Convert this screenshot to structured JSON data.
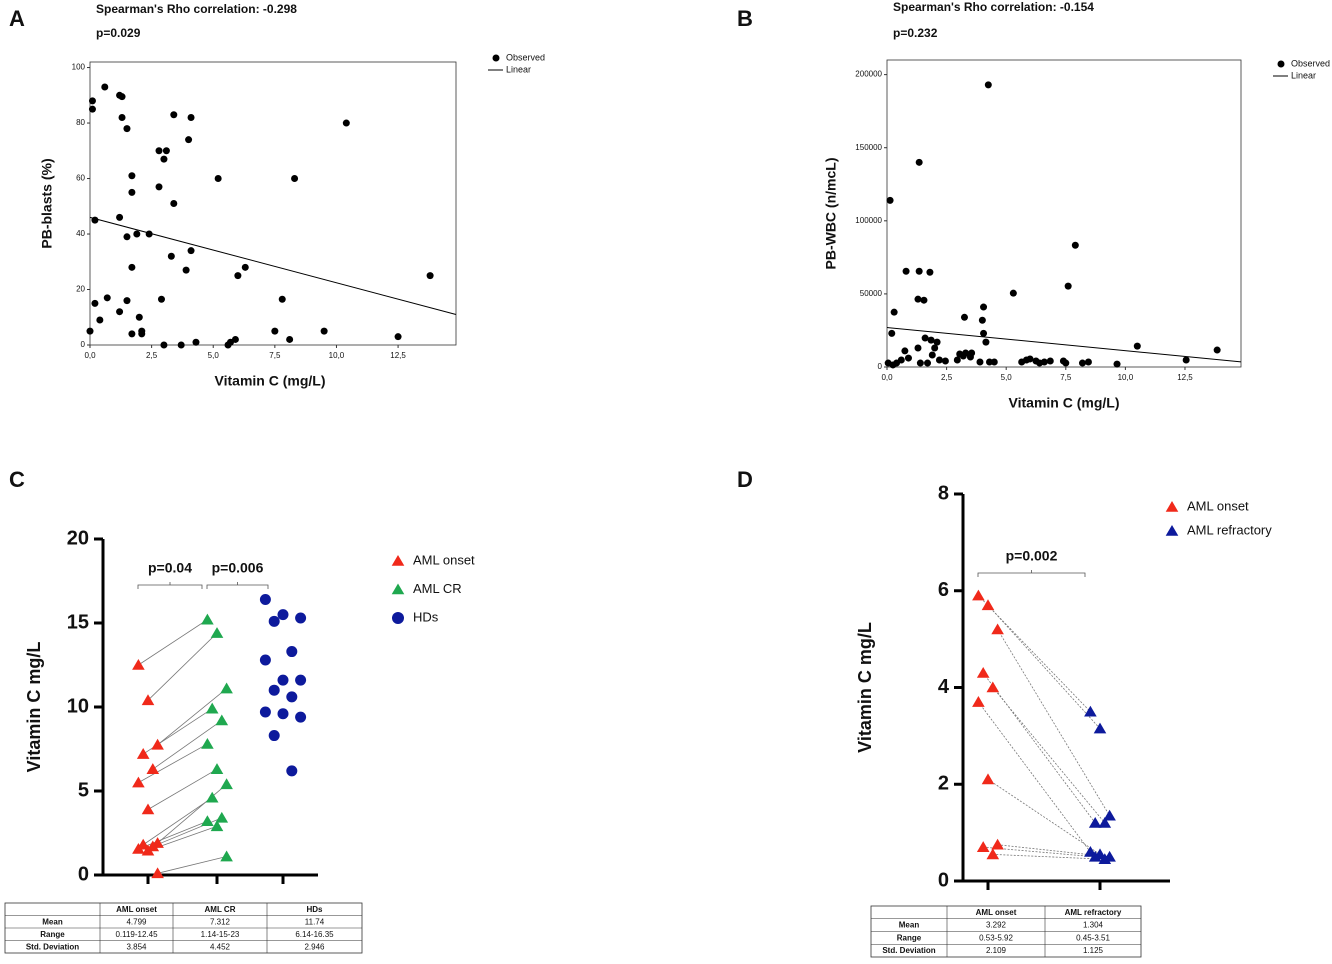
{
  "chart_data": [
    {
      "type": "scatter",
      "panel": "A",
      "title": "Spearman's Rho correlation: -0.298",
      "subtitle": "p=0.029",
      "x_label": "Vitamin C (mg/L)",
      "y_label": "PB-blasts (%)",
      "xlim": [
        0,
        14.85
      ],
      "ylim": [
        0,
        102
      ],
      "xticks": [
        {
          "value": 0,
          "label": "0,0"
        },
        {
          "value": 2.5,
          "label": "2,5"
        },
        {
          "value": 5,
          "label": "5,0"
        },
        {
          "value": 7.5,
          "label": "7,5"
        },
        {
          "value": 10,
          "label": "10,0"
        },
        {
          "value": 12.5,
          "label": "12,5"
        }
      ],
      "yticks": [
        0,
        20,
        40,
        60,
        80,
        100
      ],
      "series": [
        {
          "name": "Observed",
          "mode": "markers",
          "color": "#000000",
          "x": [
            0,
            0.1,
            0.1,
            0.2,
            0.2,
            0.4,
            0.6,
            0.7,
            1.2,
            1.2,
            1.3,
            1.3,
            1.2,
            1.5,
            1.5,
            1.5,
            1.7,
            1.7,
            1.7,
            1.7,
            1.9,
            2.0,
            2.1,
            2.1,
            2.4,
            2.8,
            2.8,
            3.0,
            3.1,
            2.9,
            3.0,
            3.3,
            3.4,
            3.4,
            3.7,
            3.9,
            4.0,
            4.1,
            4.1,
            4.3,
            5.2,
            5.6,
            5.7,
            5.9,
            6.0,
            6.3,
            7.5,
            7.8,
            8.1,
            8.3,
            9.5,
            10.4,
            12.5,
            13.8
          ],
          "values": [
            5,
            88,
            85,
            45,
            15,
            9,
            93,
            17,
            12,
            90,
            89.5,
            82,
            46,
            78,
            39,
            16,
            61,
            55,
            28,
            4,
            40,
            10,
            5,
            4,
            40,
            57,
            70,
            67,
            70,
            16.5,
            0,
            32,
            51,
            83,
            0,
            27,
            74,
            34,
            82,
            1,
            60,
            0,
            1,
            2,
            25,
            28,
            5,
            16.5,
            2,
            60,
            5,
            80,
            3,
            25
          ]
        },
        {
          "name": "Linear",
          "mode": "lines",
          "color": "#000000",
          "x": [
            0,
            14.85
          ],
          "values": [
            46,
            11
          ]
        }
      ]
    },
    {
      "type": "scatter",
      "panel": "B",
      "title": "Spearman's Rho correlation: -0.154",
      "subtitle": "p=0.232",
      "x_label": "Vitamin C (mg/L)",
      "y_label": "PB-WBC (n/mcL)",
      "xlim": [
        0,
        14.85
      ],
      "ylim": [
        0,
        210000
      ],
      "xticks": [
        {
          "value": 0,
          "label": "0,0"
        },
        {
          "value": 2.5,
          "label": "2,5"
        },
        {
          "value": 5,
          "label": "5,0"
        },
        {
          "value": 7.5,
          "label": "7,5"
        },
        {
          "value": 10,
          "label": "10,0"
        },
        {
          "value": 12.5,
          "label": "12,5"
        }
      ],
      "yticks": [
        0,
        50000,
        100000,
        150000,
        200000
      ],
      "series": [
        {
          "name": "Observed",
          "mode": "markers",
          "color": "#000000",
          "x": [
            0.13,
            0.2,
            0.3,
            0.05,
            0.25,
            0.4,
            0.6,
            0.75,
            0.8,
            0.9,
            1.35,
            1.3,
            1.4,
            1.3,
            1.55,
            1.6,
            1.7,
            1.8,
            1.85,
            2.0,
            1.9,
            2.1,
            1.35,
            2.2,
            2.45,
            2.95,
            3.05,
            3.2,
            3.3,
            3.5,
            3.25,
            3.55,
            4.05,
            4.05,
            4.0,
            4.15,
            4.25,
            3.9,
            4.3,
            4.5,
            5.3,
            5.65,
            5.85,
            6.0,
            6.25,
            6.4,
            6.6,
            6.85,
            7.4,
            7.5,
            7.6,
            7.9,
            8.2,
            8.45,
            9.65,
            10.5,
            12.55,
            13.85
          ],
          "values": [
            114000,
            23000,
            37500,
            2700,
            1400,
            2700,
            4800,
            11000,
            65500,
            6100,
            65500,
            46400,
            2700,
            13000,
            45700,
            19800,
            2700,
            64800,
            18400,
            13000,
            8200,
            17000,
            140000,
            4800,
            4100,
            4800,
            8900,
            7500,
            9600,
            6800,
            34000,
            9600,
            23000,
            41000,
            32000,
            17000,
            193000,
            3400,
            3400,
            3400,
            50500,
            3400,
            4800,
            5500,
            4100,
            2700,
            3400,
            4100,
            4100,
            2700,
            55300,
            83300,
            2700,
            3400,
            2000,
            14300,
            4800,
            11600
          ]
        },
        {
          "name": "Linear",
          "mode": "lines",
          "color": "#000000",
          "x": [
            0,
            14.85
          ],
          "values": [
            27000,
            3500
          ]
        }
      ]
    },
    {
      "type": "dot",
      "panel": "C",
      "y_label": "Vitamin C mg/L",
      "ylim": [
        0,
        20
      ],
      "yticks": [
        0,
        5,
        10,
        15,
        20
      ],
      "annotations": [
        "p=0.04",
        "p=0.006"
      ],
      "series": [
        {
          "name": "AML onset",
          "marker": "triangle",
          "color": "#f0291a",
          "values": [
            12.5,
            10.4,
            7.75,
            7.2,
            6.3,
            5.5,
            3.9,
            1.9,
            1.8,
            1.7,
            1.55,
            1.45,
            0.1
          ]
        },
        {
          "name": "AML CR",
          "marker": "triangle",
          "color": "#1fa84f",
          "values": [
            15.2,
            14.4,
            11.1,
            9.9,
            9.2,
            7.8,
            6.3,
            5.4,
            4.6,
            3.4,
            3.2,
            2.9,
            1.1
          ]
        },
        {
          "name": "HDs",
          "marker": "circle",
          "color": "#0d1a9c",
          "values": [
            16.4,
            15.5,
            15.3,
            15.1,
            13.3,
            12.8,
            11.6,
            11.6,
            11.0,
            10.6,
            9.7,
            9.6,
            9.4,
            8.3,
            6.2
          ]
        }
      ],
      "paired": true,
      "table": {
        "columns": [
          "AML onset",
          "AML CR",
          "HDs"
        ],
        "rows": [
          {
            "label": "Mean",
            "cells": [
              4.799,
              7.312,
              11.74
            ]
          },
          {
            "label": "Range",
            "cells": [
              "0.119-12.45",
              "1.14-15-23",
              "6.14-16.35"
            ]
          },
          {
            "label": "Std. Deviation",
            "cells": [
              3.854,
              4.452,
              2.946
            ]
          }
        ]
      }
    },
    {
      "type": "dot",
      "panel": "D",
      "y_label": "Vitamin C mg/L",
      "ylim": [
        0,
        8
      ],
      "yticks": [
        0,
        2,
        4,
        6,
        8
      ],
      "annotations": [
        "p=0.002"
      ],
      "series": [
        {
          "name": "AML onset",
          "marker": "triangle",
          "color": "#f0291a",
          "values": [
            5.9,
            5.7,
            5.2,
            4.3,
            4.0,
            3.7,
            2.1,
            0.75,
            0.7,
            0.55
          ]
        },
        {
          "name": "AML refractory",
          "marker": "triangle",
          "color": "#0d1a9c",
          "values": [
            3.5,
            3.15,
            1.35,
            1.2,
            1.2,
            0.6,
            0.55,
            0.5,
            0.5,
            0.45
          ]
        }
      ],
      "paired": true,
      "table": {
        "columns": [
          "AML onset",
          "AML refractory"
        ],
        "rows": [
          {
            "label": "Mean",
            "cells": [
              3.292,
              1.304
            ]
          },
          {
            "label": "Range",
            "cells": [
              "0.53-5.92",
              "0.45-3.51"
            ]
          },
          {
            "label": "Std. Deviation",
            "cells": [
              2.109,
              1.125
            ]
          }
        ]
      }
    }
  ]
}
